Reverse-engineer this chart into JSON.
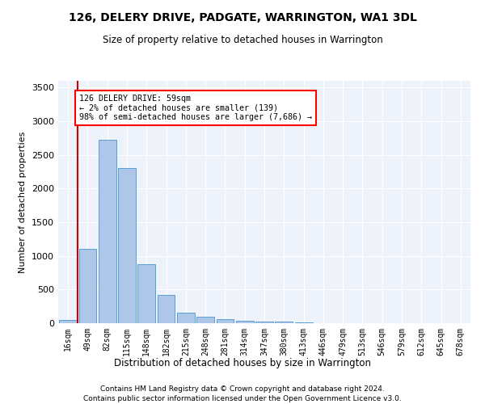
{
  "title": "126, DELERY DRIVE, PADGATE, WARRINGTON, WA1 3DL",
  "subtitle": "Size of property relative to detached houses in Warrington",
  "xlabel": "Distribution of detached houses by size in Warrington",
  "ylabel": "Number of detached properties",
  "footer1": "Contains HM Land Registry data © Crown copyright and database right 2024.",
  "footer2": "Contains public sector information licensed under the Open Government Licence v3.0.",
  "annotation_line1": "126 DELERY DRIVE: 59sqm",
  "annotation_line2": "← 2% of detached houses are smaller (139)",
  "annotation_line3": "98% of semi-detached houses are larger (7,686) →",
  "bar_color": "#aec6e8",
  "bar_edge_color": "#5a9fd4",
  "red_line_color": "#cc0000",
  "background_color": "#eef2fa",
  "categories": [
    "16sqm",
    "49sqm",
    "82sqm",
    "115sqm",
    "148sqm",
    "182sqm",
    "215sqm",
    "248sqm",
    "281sqm",
    "314sqm",
    "347sqm",
    "380sqm",
    "413sqm",
    "446sqm",
    "479sqm",
    "513sqm",
    "546sqm",
    "579sqm",
    "612sqm",
    "645sqm",
    "678sqm"
  ],
  "values": [
    50,
    1100,
    2720,
    2300,
    880,
    420,
    160,
    100,
    60,
    40,
    30,
    20,
    10,
    5,
    3,
    2,
    1,
    1,
    0,
    0,
    0
  ],
  "ylim": [
    0,
    3600
  ],
  "yticks": [
    0,
    500,
    1000,
    1500,
    2000,
    2500,
    3000,
    3500
  ],
  "property_sqm": 59
}
